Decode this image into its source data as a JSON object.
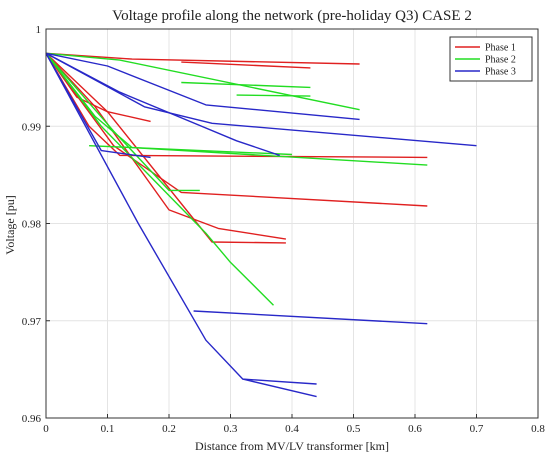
{
  "chart_data": {
    "type": "line",
    "title": "Voltage profile along the network (pre-holiday Q3) CASE 2",
    "xlabel": "Distance from MV/LV transformer [km]",
    "ylabel": "Voltage [pu]",
    "xlim": [
      0,
      0.8
    ],
    "ylim": [
      0.96,
      1.0
    ],
    "grid": true,
    "legend_placement": "top-right",
    "x_ticks": [
      "0",
      "0.1",
      "0.2",
      "0.3",
      "0.4",
      "0.5",
      "0.6",
      "0.7",
      "0.8"
    ],
    "y_ticks": [
      "0.96",
      "0.97",
      "0.98",
      "0.99",
      "1"
    ],
    "series": [
      {
        "name": "Phase 1",
        "color": "#e02020",
        "lines": [
          [
            [
              0.0,
              0.9975
            ],
            [
              0.14,
              0.9969
            ],
            [
              0.51,
              0.9964
            ]
          ],
          [
            [
              0.22,
              0.9966
            ],
            [
              0.43,
              0.996
            ]
          ],
          [
            [
              0.0,
              0.9975
            ],
            [
              0.05,
              0.993
            ],
            [
              0.1,
              0.9915
            ],
            [
              0.17,
              0.9905
            ]
          ],
          [
            [
              0.0,
              0.9975
            ],
            [
              0.07,
              0.99
            ],
            [
              0.12,
              0.987
            ],
            [
              0.62,
              0.9868
            ]
          ],
          [
            [
              0.0,
              0.9975
            ],
            [
              0.11,
              0.988
            ],
            [
              0.22,
              0.9832
            ],
            [
              0.62,
              0.9818
            ]
          ],
          [
            [
              0.0,
              0.9975
            ],
            [
              0.08,
              0.992
            ],
            [
              0.2,
              0.9814
            ],
            [
              0.28,
              0.9795
            ],
            [
              0.39,
              0.9784
            ]
          ],
          [
            [
              0.0,
              0.9975
            ],
            [
              0.1,
              0.9915
            ],
            [
              0.27,
              0.9781
            ],
            [
              0.39,
              0.978
            ]
          ]
        ]
      },
      {
        "name": "Phase 2",
        "color": "#22dd22",
        "lines": [
          [
            [
              0.0,
              0.9975
            ],
            [
              0.12,
              0.9968
            ],
            [
              0.51,
              0.9917
            ]
          ],
          [
            [
              0.22,
              0.9945
            ],
            [
              0.43,
              0.994
            ]
          ],
          [
            [
              0.31,
              0.9932
            ],
            [
              0.43,
              0.9931
            ]
          ],
          [
            [
              0.0,
              0.9975
            ],
            [
              0.08,
              0.991
            ],
            [
              0.14,
              0.9878
            ],
            [
              0.62,
              0.986
            ]
          ],
          [
            [
              0.07,
              0.988
            ],
            [
              0.4,
              0.9871
            ]
          ],
          [
            [
              0.0,
              0.9975
            ],
            [
              0.11,
              0.9895
            ],
            [
              0.2,
              0.9834
            ],
            [
              0.25,
              0.9834
            ]
          ],
          [
            [
              0.0,
              0.9975
            ],
            [
              0.09,
              0.99
            ],
            [
              0.26,
              0.979
            ],
            [
              0.3,
              0.976
            ],
            [
              0.37,
              0.9716
            ]
          ]
        ]
      },
      {
        "name": "Phase 3",
        "color": "#2828c8",
        "lines": [
          [
            [
              0.0,
              0.9975
            ],
            [
              0.1,
              0.9962
            ],
            [
              0.26,
              0.9922
            ],
            [
              0.51,
              0.9907
            ]
          ],
          [
            [
              0.0,
              0.9975
            ],
            [
              0.16,
              0.992
            ],
            [
              0.27,
              0.9903
            ],
            [
              0.7,
              0.988
            ]
          ],
          [
            [
              0.0,
              0.9975
            ],
            [
              0.12,
              0.9935
            ],
            [
              0.31,
              0.9885
            ],
            [
              0.38,
              0.987
            ]
          ],
          [
            [
              0.0,
              0.9975
            ],
            [
              0.09,
              0.9875
            ],
            [
              0.17,
              0.9868
            ]
          ],
          [
            [
              0.24,
              0.971
            ],
            [
              0.62,
              0.9697
            ]
          ],
          [
            [
              0.0,
              0.9975
            ],
            [
              0.15,
              0.98
            ],
            [
              0.26,
              0.968
            ],
            [
              0.32,
              0.964
            ],
            [
              0.44,
              0.9635
            ]
          ],
          [
            [
              0.32,
              0.964
            ],
            [
              0.44,
              0.9622
            ]
          ]
        ]
      }
    ]
  }
}
